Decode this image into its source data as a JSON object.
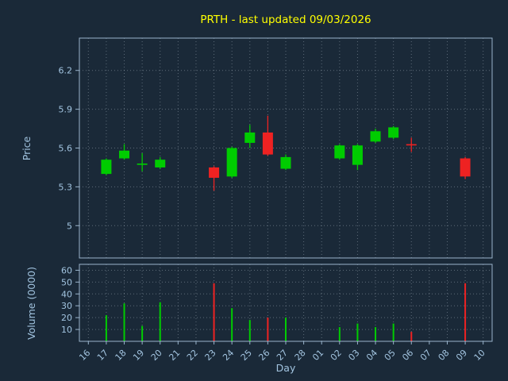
{
  "title": "PRTH - last updated 09/03/2026",
  "xlabel": "Day",
  "colors": {
    "background": "#1a2938",
    "plot_bg": "#1a2938",
    "title": "#ffff00",
    "text": "#a2c4e0",
    "grid": "#c9d6e0",
    "spine": "#9ab4cc",
    "up": "#00cc00",
    "down": "#ee2222"
  },
  "chart_data": [
    {
      "type": "candlestick",
      "title": "PRTH - last updated 09/03/2026",
      "ylabel": "Price",
      "ylim": [
        4.75,
        6.45
      ],
      "yticks": [
        5,
        5.3,
        5.6,
        5.9,
        6.2
      ],
      "grid": true,
      "categories": [
        "16",
        "17",
        "18",
        "19",
        "20",
        "21",
        "22",
        "23",
        "24",
        "25",
        "26",
        "27",
        "28",
        "01",
        "02",
        "03",
        "04",
        "05",
        "06",
        "07",
        "08",
        "09",
        "10"
      ],
      "candles": [
        {
          "day": "17",
          "open": 5.4,
          "close": 5.51,
          "high": 5.52,
          "low": 5.39,
          "direction": "up"
        },
        {
          "day": "18",
          "open": 5.52,
          "close": 5.58,
          "high": 5.63,
          "low": 5.51,
          "direction": "up"
        },
        {
          "day": "19",
          "open": 5.47,
          "close": 5.48,
          "high": 5.56,
          "low": 5.42,
          "direction": "up"
        },
        {
          "day": "20",
          "open": 5.45,
          "close": 5.51,
          "high": 5.53,
          "low": 5.44,
          "direction": "up"
        },
        {
          "day": "23",
          "open": 5.45,
          "close": 5.37,
          "high": 5.46,
          "low": 5.27,
          "direction": "down"
        },
        {
          "day": "24",
          "open": 5.38,
          "close": 5.6,
          "high": 5.61,
          "low": 5.37,
          "direction": "up"
        },
        {
          "day": "25",
          "open": 5.64,
          "close": 5.72,
          "high": 5.78,
          "low": 5.6,
          "direction": "up"
        },
        {
          "day": "26",
          "open": 5.72,
          "close": 5.55,
          "high": 5.85,
          "low": 5.54,
          "direction": "down"
        },
        {
          "day": "27",
          "open": 5.44,
          "close": 5.53,
          "high": 5.55,
          "low": 5.43,
          "direction": "up"
        },
        {
          "day": "02",
          "open": 5.52,
          "close": 5.62,
          "high": 5.63,
          "low": 5.51,
          "direction": "up"
        },
        {
          "day": "03",
          "open": 5.47,
          "close": 5.62,
          "high": 5.63,
          "low": 5.43,
          "direction": "up"
        },
        {
          "day": "04",
          "open": 5.65,
          "close": 5.73,
          "high": 5.75,
          "low": 5.64,
          "direction": "up"
        },
        {
          "day": "05",
          "open": 5.68,
          "close": 5.76,
          "high": 5.77,
          "low": 5.67,
          "direction": "up"
        },
        {
          "day": "06",
          "open": 5.63,
          "close": 5.62,
          "high": 5.68,
          "low": 5.57,
          "direction": "down"
        },
        {
          "day": "09",
          "open": 5.52,
          "close": 5.38,
          "high": 5.53,
          "low": 5.36,
          "direction": "down"
        }
      ]
    },
    {
      "type": "bar",
      "ylabel": "Volume (0000)",
      "xlabel": "Day",
      "ylim": [
        0,
        65
      ],
      "yticks": [
        10,
        20,
        30,
        40,
        50,
        60
      ],
      "grid": true,
      "categories": [
        "16",
        "17",
        "18",
        "19",
        "20",
        "21",
        "22",
        "23",
        "24",
        "25",
        "26",
        "27",
        "28",
        "01",
        "02",
        "03",
        "04",
        "05",
        "06",
        "07",
        "08",
        "09",
        "10"
      ],
      "values": [
        {
          "day": "17",
          "volume": 22,
          "direction": "up"
        },
        {
          "day": "18",
          "volume": 32,
          "direction": "up"
        },
        {
          "day": "19",
          "volume": 13,
          "direction": "up"
        },
        {
          "day": "20",
          "volume": 33,
          "direction": "up"
        },
        {
          "day": "23",
          "volume": 49,
          "direction": "down"
        },
        {
          "day": "24",
          "volume": 28,
          "direction": "up"
        },
        {
          "day": "25",
          "volume": 18,
          "direction": "up"
        },
        {
          "day": "26",
          "volume": 20,
          "direction": "down"
        },
        {
          "day": "27",
          "volume": 20,
          "direction": "up"
        },
        {
          "day": "02",
          "volume": 12,
          "direction": "up"
        },
        {
          "day": "03",
          "volume": 15,
          "direction": "up"
        },
        {
          "day": "04",
          "volume": 12,
          "direction": "up"
        },
        {
          "day": "05",
          "volume": 15,
          "direction": "up"
        },
        {
          "day": "06",
          "volume": 8,
          "direction": "down"
        },
        {
          "day": "09",
          "volume": 49,
          "direction": "down"
        }
      ]
    }
  ]
}
